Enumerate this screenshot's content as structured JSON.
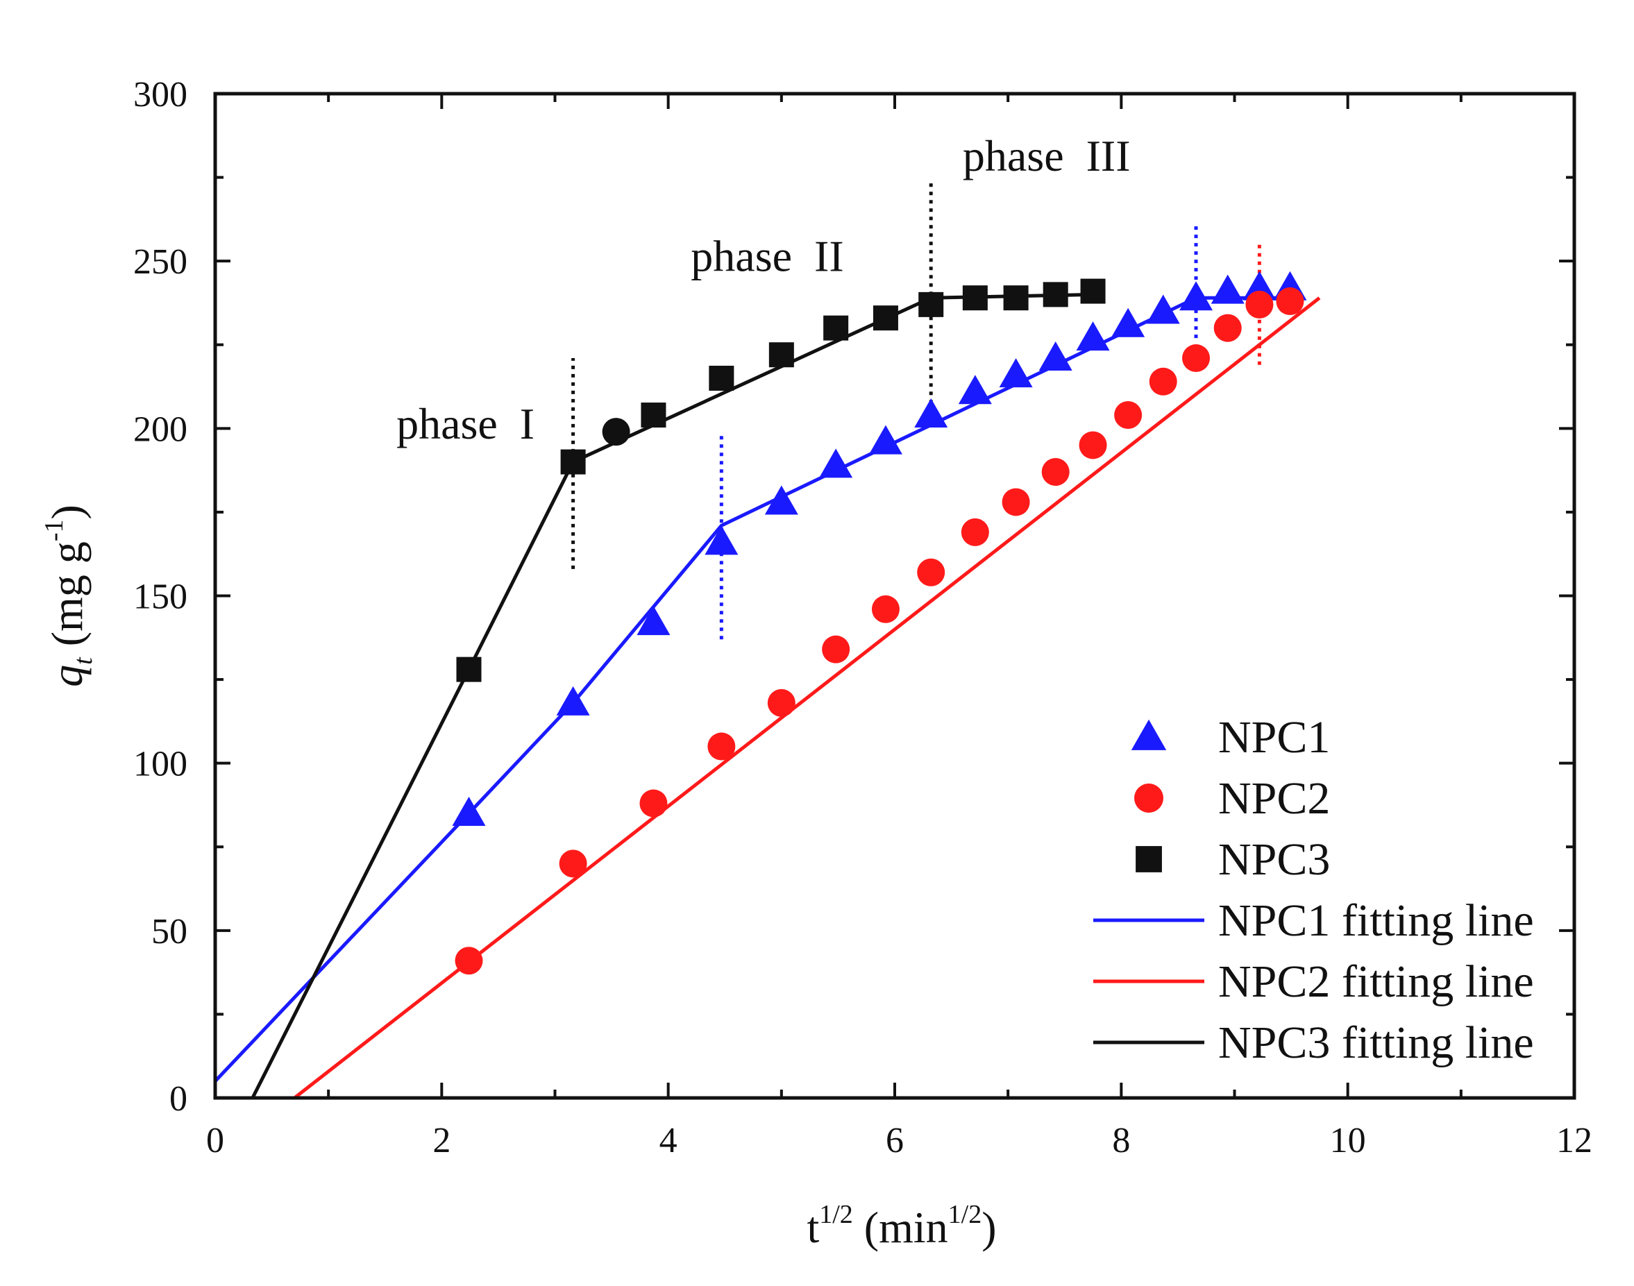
{
  "chart_data": {
    "type": "scatter",
    "title": "",
    "xlabel": "t",
    "xlabel_sup": "1/2",
    "xlabel_unit": "min",
    "xlabel_unit_sup": "1/2",
    "ylabel": "q",
    "ylabel_sub": "t",
    "ylabel_unit": "mg g",
    "ylabel_unit_sup": "-1",
    "xlim": [
      0,
      12
    ],
    "ylim": [
      0,
      300
    ],
    "xticks": [
      0,
      2,
      4,
      6,
      8,
      10,
      12
    ],
    "xtick_labels": [
      "0",
      "2",
      "4",
      "6",
      "8",
      "10",
      "12"
    ],
    "yticks": [
      0,
      50,
      100,
      150,
      200,
      250,
      300
    ],
    "ytick_labels": [
      "0",
      "50",
      "100",
      "150",
      "200",
      "250",
      "300"
    ],
    "grid": false,
    "legend_position": "bottom-right",
    "colors": {
      "NPC1": "#1a1aff",
      "NPC2": "#ff1a1a",
      "NPC3": "#111111"
    },
    "series": [
      {
        "name": "NPC1",
        "marker": "triangle",
        "color": "#1a1aff",
        "x": [
          2.24,
          3.16,
          3.87,
          4.47,
          5.0,
          5.48,
          5.92,
          6.32,
          6.71,
          7.07,
          7.42,
          7.75,
          8.06,
          8.37,
          8.66,
          8.94,
          9.22,
          9.49
        ],
        "y": [
          85,
          118,
          142,
          166,
          178,
          189,
          196,
          204,
          211,
          216,
          221,
          227,
          231,
          235,
          239,
          241,
          242,
          242
        ]
      },
      {
        "name": "NPC2",
        "marker": "circle",
        "color": "#ff1a1a",
        "x": [
          2.24,
          3.16,
          3.87,
          4.47,
          5.0,
          5.48,
          5.92,
          6.32,
          6.71,
          7.07,
          7.42,
          7.75,
          8.06,
          8.37,
          8.66,
          8.94,
          9.22,
          9.49
        ],
        "y": [
          41,
          70,
          88,
          105,
          118,
          134,
          146,
          157,
          169,
          178,
          187,
          195,
          204,
          214,
          221,
          230,
          237,
          238
        ]
      },
      {
        "name": "NPC3",
        "marker": "square",
        "color": "#111111",
        "x": [
          2.24,
          3.16,
          3.87,
          4.47,
          5.0,
          5.48,
          5.92,
          6.32,
          6.71,
          7.07,
          7.42,
          7.75
        ],
        "y": [
          128,
          190,
          204,
          215,
          222,
          230,
          233,
          237,
          239,
          239,
          240,
          241
        ]
      },
      {
        "name": "NPC3",
        "marker": "circle",
        "color": "#111111",
        "in_legend": false,
        "x": [
          3.54
        ],
        "y": [
          199
        ]
      }
    ],
    "fitting_lines": [
      {
        "name": "NPC1 fitting line",
        "color": "#1a1aff",
        "x": [
          0,
          2.24,
          3.16,
          4.47,
          8.66,
          9.49
        ],
        "y": [
          5,
          85,
          118,
          171,
          239,
          239
        ]
      },
      {
        "name": "NPC2 fitting line",
        "color": "#ff1a1a",
        "x": [
          0.7,
          9.75
        ],
        "y": [
          0,
          239
        ]
      },
      {
        "name": "NPC3 fitting line",
        "color": "#111111",
        "x": [
          0.33,
          2.24,
          3.16,
          6.32,
          7.75
        ],
        "y": [
          0,
          128,
          190,
          239,
          240
        ]
      }
    ],
    "phase_boundaries": [
      {
        "x": 3.16,
        "y_range": [
          158,
          221
        ],
        "color": "#111111"
      },
      {
        "x": 6.32,
        "y_range": [
          205,
          274
        ],
        "color": "#111111"
      },
      {
        "x": 4.47,
        "y_range": [
          137,
          199
        ],
        "color": "#1a1aff"
      },
      {
        "x": 8.66,
        "y_range": [
          227,
          261
        ],
        "color": "#1a1aff"
      },
      {
        "x": 9.22,
        "y_range": [
          219,
          255
        ],
        "color": "#ff1a1a"
      }
    ],
    "annotations": [
      {
        "text": "phase  I",
        "x": 1.6,
        "y": 197
      },
      {
        "text": "phase  II",
        "x": 4.2,
        "y": 247
      },
      {
        "text": "phase  III",
        "x": 6.6,
        "y": 277
      }
    ],
    "legend": [
      {
        "label": "NPC1",
        "kind": "marker",
        "marker": "triangle",
        "color": "#1a1aff"
      },
      {
        "label": "NPC2",
        "kind": "marker",
        "marker": "circle",
        "color": "#ff1a1a"
      },
      {
        "label": "NPC3",
        "kind": "marker",
        "marker": "square",
        "color": "#111111"
      },
      {
        "label": "NPC1 fitting line",
        "kind": "line",
        "color": "#1a1aff"
      },
      {
        "label": "NPC2 fitting line",
        "kind": "line",
        "color": "#ff1a1a"
      },
      {
        "label": "NPC3 fitting line",
        "kind": "line",
        "color": "#111111"
      }
    ]
  }
}
